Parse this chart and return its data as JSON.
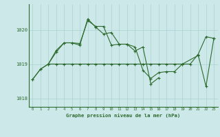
{
  "title": "Graphe pression niveau de la mer (hPa)",
  "bg_color": "#cce8e8",
  "grid_color": "#aad0d0",
  "line_color": "#2d6a2d",
  "xlim_min": -0.5,
  "xlim_max": 23.5,
  "ylim_min": 1017.75,
  "ylim_max": 1020.75,
  "yticks": [
    1018,
    1019,
    1020
  ],
  "xticks": [
    0,
    1,
    2,
    3,
    4,
    5,
    6,
    7,
    8,
    9,
    10,
    11,
    12,
    13,
    14,
    15,
    16,
    17,
    18,
    19,
    20,
    21,
    22,
    23
  ],
  "series1_x": [
    0,
    1,
    2,
    3,
    4,
    5,
    6,
    7,
    8,
    9,
    10,
    11,
    12,
    13,
    14,
    15,
    16,
    17,
    18,
    19,
    21
  ],
  "series1_y": [
    1018.55,
    1018.85,
    1019.0,
    1019.4,
    1019.62,
    1019.62,
    1019.6,
    1020.27,
    1020.1,
    1020.1,
    1019.55,
    1019.58,
    1019.58,
    1019.5,
    1018.82,
    1018.58,
    1018.75,
    1018.78,
    1018.78,
    1019.0,
    1019.25
  ],
  "series2_x": [
    2,
    3,
    4,
    5,
    6,
    7,
    8,
    9,
    10,
    11,
    12,
    13,
    14,
    15,
    16
  ],
  "series2_y": [
    1019.0,
    1019.35,
    1019.62,
    1019.62,
    1019.55,
    1020.32,
    1020.08,
    1019.88,
    1019.92,
    1019.58,
    1019.58,
    1019.38,
    1019.5,
    1018.42,
    1018.6
  ],
  "series3_x": [
    0,
    1,
    2,
    3,
    4,
    5,
    6,
    7,
    8,
    9,
    10,
    11,
    12,
    13,
    14,
    15,
    16,
    17,
    18,
    19,
    20,
    21,
    22,
    23
  ],
  "series3_y": [
    1018.55,
    1018.85,
    1019.0,
    1019.0,
    1019.0,
    1019.0,
    1019.0,
    1019.0,
    1019.0,
    1019.0,
    1019.0,
    1019.0,
    1019.0,
    1019.0,
    1019.0,
    1019.0,
    1019.0,
    1019.0,
    1019.0,
    1019.0,
    1019.0,
    1019.28,
    1019.8,
    1019.75
  ],
  "series4_x": [
    21,
    22,
    23
  ],
  "series4_y": [
    1019.28,
    1018.35,
    1019.75
  ]
}
